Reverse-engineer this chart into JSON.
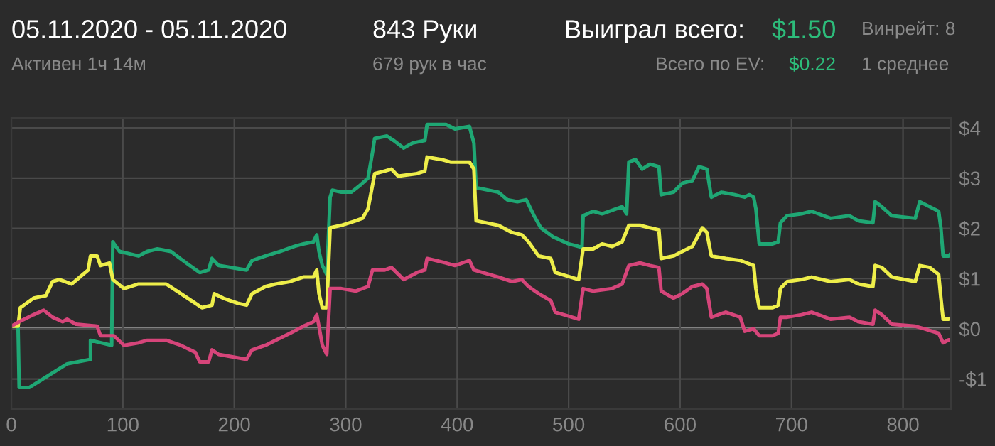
{
  "chart_data": {
    "type": "line",
    "title": "05.11.2020 - 05.11.2020",
    "subtitle": "Активен 1ч 14м",
    "annotations": [
      "843 Руки",
      "679 рук в час",
      "Выиграл всего:",
      "$1.50",
      "Всего по EV:",
      "$0.22",
      "Винрейт: 8",
      "1 среднее"
    ],
    "series": [
      {
        "color": "#1fa774",
        "x": [
          0,
          6,
          7,
          16,
          50,
          71,
          71,
          90,
          91,
          97,
          114,
          122,
          131,
          143,
          160,
          169,
          177,
          180,
          186,
          211,
          216,
          228,
          241,
          254,
          262,
          271,
          274,
          276,
          279,
          283,
          286,
          288,
          296,
          305,
          313,
          320,
          324,
          326,
          337,
          343,
          352,
          360,
          371,
          373,
          390,
          398,
          411,
          415,
          417,
          437,
          445,
          454,
          462,
          469,
          475,
          486,
          500,
          509,
          512,
          513,
          522,
          530,
          543,
          548,
          552,
          554,
          560,
          566,
          573,
          581,
          583,
          594,
          602,
          611,
          617,
          624,
          628,
          637,
          649,
          658,
          662,
          666,
          668,
          671,
          683,
          688,
          690,
          696,
          709,
          718,
          735,
          752,
          760,
          773,
          775,
          781,
          790,
          811,
          815,
          824,
          832,
          834,
          836,
          841,
          843
        ],
        "values": [
          0.05,
          0.05,
          -1.17,
          -1.17,
          -0.7,
          -0.61,
          -0.23,
          -0.33,
          1.73,
          1.54,
          1.45,
          1.54,
          1.59,
          1.54,
          1.26,
          1.12,
          1.17,
          1.4,
          1.26,
          1.17,
          1.36,
          1.45,
          1.54,
          1.64,
          1.69,
          1.73,
          1.87,
          1.54,
          1.26,
          1.08,
          2.62,
          2.76,
          2.72,
          2.72,
          2.86,
          3.0,
          3.51,
          3.79,
          3.84,
          3.75,
          3.6,
          3.7,
          3.75,
          4.07,
          4.07,
          3.98,
          4.03,
          3.7,
          2.81,
          2.72,
          2.57,
          2.53,
          2.57,
          2.25,
          2.01,
          1.83,
          1.69,
          1.64,
          1.61,
          2.25,
          2.34,
          2.29,
          2.39,
          2.43,
          2.29,
          3.32,
          3.37,
          3.18,
          3.28,
          3.23,
          2.67,
          2.72,
          2.9,
          2.95,
          3.23,
          3.18,
          2.62,
          2.72,
          2.67,
          2.62,
          2.67,
          2.62,
          2.39,
          1.69,
          1.69,
          1.73,
          2.11,
          2.25,
          2.29,
          2.34,
          2.2,
          2.25,
          2.15,
          2.11,
          2.53,
          2.43,
          2.25,
          2.2,
          2.53,
          2.43,
          2.34,
          2.01,
          1.45,
          1.45,
          1.5
        ]
      },
      {
        "color": "#eeee4a",
        "x": [
          0,
          6,
          8,
          20,
          31,
          37,
          43,
          48,
          54,
          69,
          71,
          77,
          80,
          88,
          91,
          101,
          114,
          139,
          152,
          165,
          171,
          180,
          182,
          190,
          203,
          211,
          216,
          228,
          237,
          250,
          262,
          271,
          274,
          276,
          279,
          283,
          286,
          296,
          309,
          315,
          320,
          326,
          335,
          341,
          347,
          364,
          371,
          373,
          386,
          394,
          411,
          415,
          417,
          437,
          449,
          458,
          464,
          473,
          484,
          488,
          509,
          513,
          522,
          530,
          539,
          548,
          554,
          564,
          573,
          581,
          583,
          594,
          602,
          611,
          620,
          624,
          628,
          641,
          654,
          666,
          668,
          671,
          683,
          688,
          690,
          696,
          709,
          718,
          735,
          752,
          760,
          773,
          775,
          781,
          790,
          811,
          815,
          824,
          832,
          834,
          836,
          841,
          843
        ],
        "values": [
          0.05,
          0.05,
          0.42,
          0.61,
          0.66,
          0.94,
          0.98,
          0.94,
          0.89,
          1.17,
          1.45,
          1.45,
          1.26,
          1.31,
          0.98,
          0.8,
          0.89,
          0.89,
          0.7,
          0.51,
          0.42,
          0.47,
          0.7,
          0.61,
          0.51,
          0.47,
          0.7,
          0.84,
          0.89,
          0.94,
          1.03,
          1.03,
          1.17,
          0.7,
          0.42,
          0.42,
          2.01,
          2.06,
          2.15,
          2.2,
          2.39,
          3.09,
          3.14,
          3.18,
          3.04,
          3.09,
          3.14,
          3.42,
          3.37,
          3.32,
          3.32,
          3.18,
          2.15,
          2.06,
          1.92,
          1.87,
          1.73,
          1.45,
          1.4,
          1.12,
          0.98,
          1.59,
          1.59,
          1.69,
          1.64,
          1.73,
          2.06,
          2.06,
          2.01,
          1.97,
          1.4,
          1.45,
          1.54,
          1.64,
          2.01,
          1.92,
          1.45,
          1.4,
          1.36,
          1.26,
          0.8,
          0.42,
          0.42,
          0.47,
          0.8,
          0.94,
          0.98,
          1.03,
          0.94,
          0.98,
          0.89,
          0.84,
          1.26,
          1.22,
          1.03,
          0.94,
          1.26,
          1.22,
          1.08,
          0.61,
          0.19,
          0.19,
          0.22
        ]
      },
      {
        "color": "#d6457a",
        "x": [
          0,
          7,
          20,
          29,
          37,
          46,
          50,
          58,
          77,
          80,
          92,
          101,
          114,
          122,
          139,
          152,
          165,
          169,
          177,
          180,
          186,
          211,
          216,
          228,
          237,
          250,
          262,
          271,
          274,
          276,
          279,
          283,
          286,
          296,
          309,
          320,
          324,
          335,
          341,
          352,
          364,
          371,
          373,
          390,
          398,
          411,
          415,
          437,
          449,
          458,
          464,
          473,
          484,
          488,
          509,
          513,
          522,
          539,
          548,
          554,
          564,
          573,
          581,
          583,
          594,
          602,
          611,
          620,
          624,
          628,
          641,
          654,
          658,
          666,
          671,
          683,
          688,
          690,
          696,
          709,
          718,
          735,
          752,
          760,
          773,
          775,
          781,
          790,
          811,
          819,
          832,
          836,
          841,
          843
        ],
        "values": [
          0.05,
          0.14,
          0.28,
          0.37,
          0.23,
          0.14,
          0.19,
          0.09,
          0.05,
          -0.14,
          -0.14,
          -0.33,
          -0.28,
          -0.23,
          -0.23,
          -0.33,
          -0.47,
          -0.66,
          -0.66,
          -0.42,
          -0.51,
          -0.61,
          -0.42,
          -0.33,
          -0.23,
          -0.09,
          0.05,
          0.14,
          0.28,
          0.05,
          -0.33,
          -0.51,
          0.8,
          0.8,
          0.75,
          0.84,
          1.17,
          1.17,
          1.22,
          0.98,
          1.12,
          1.17,
          1.4,
          1.31,
          1.26,
          1.36,
          1.17,
          1.03,
          0.94,
          0.98,
          0.84,
          0.7,
          0.56,
          0.33,
          0.19,
          0.8,
          0.75,
          0.8,
          0.89,
          1.26,
          1.31,
          1.26,
          1.22,
          0.75,
          0.61,
          0.7,
          0.84,
          0.89,
          0.8,
          0.23,
          0.33,
          0.23,
          -0.05,
          0,
          -0.14,
          -0.14,
          -0.09,
          0.23,
          0.23,
          0.28,
          0.33,
          0.19,
          0.23,
          0.14,
          0.09,
          0.37,
          0.28,
          0.09,
          0.05,
          0,
          -0.09,
          -0.28,
          -0.22,
          -0.22
        ]
      }
    ],
    "xlim": [
      0,
      843
    ],
    "ylim": [
      -1.6,
      4.2
    ],
    "xticks": [
      0,
      100,
      200,
      300,
      400,
      500,
      600,
      700,
      800
    ],
    "yticks": [
      {
        "value": -1,
        "label": "-$1"
      },
      {
        "value": 0,
        "label": "$0"
      },
      {
        "value": 1,
        "label": "$1"
      },
      {
        "value": 2,
        "label": "$2"
      },
      {
        "value": 3,
        "label": "$3"
      },
      {
        "value": 4,
        "label": "$4"
      }
    ],
    "ref_lines": [
      {
        "axis": "y",
        "value": 0,
        "color": "#bbbbbb"
      }
    ],
    "grid": true,
    "legend": false,
    "marker": "none",
    "line_style": "solid"
  }
}
